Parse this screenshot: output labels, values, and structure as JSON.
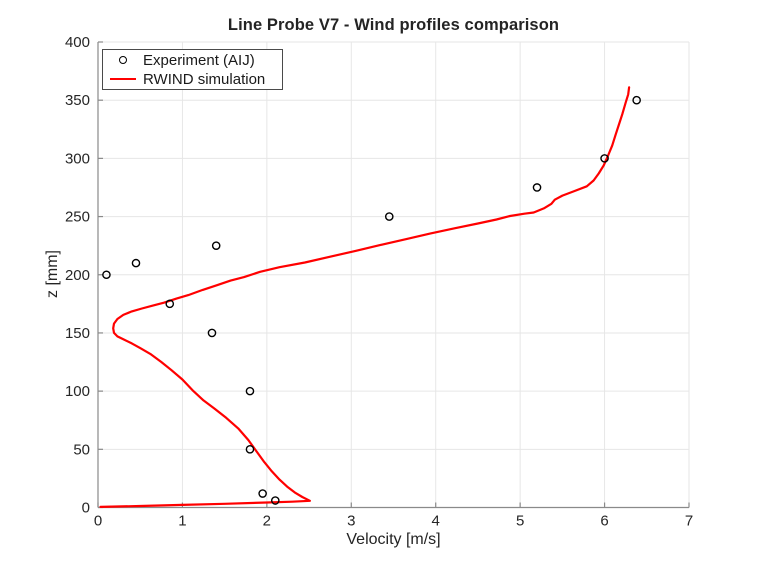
{
  "title": "Line Probe V7 - Wind profiles comparison",
  "legend": {
    "position": "upper-left",
    "items": [
      {
        "label": "Experiment (AIJ)",
        "marker": "open-circle",
        "color": "#000000"
      },
      {
        "label": "RWIND simulation",
        "marker": "line",
        "color": "#ff0000"
      }
    ]
  },
  "colors": {
    "line": "#ff0000",
    "marker_edge": "#000000",
    "grid": "#e6e6e6",
    "axis": "#8a8a8a",
    "tick_text": "#262626",
    "background": "#ffffff"
  },
  "chart_data": {
    "type": "line",
    "title": "Line Probe V7 - Wind profiles comparison",
    "xlabel": "Velocity [m/s]",
    "ylabel": "z [mm]",
    "xlim": [
      0,
      7
    ],
    "ylim": [
      0,
      400
    ],
    "xticks": [
      0,
      1,
      2,
      3,
      4,
      5,
      6,
      7
    ],
    "yticks": [
      0,
      50,
      100,
      150,
      200,
      250,
      300,
      350,
      400
    ],
    "grid": true,
    "legend_position": "upper-left",
    "series": [
      {
        "name": "Experiment (AIJ)",
        "type": "scatter",
        "marker": "open-circle",
        "color": "#000000",
        "points": [
          [
            2.1,
            6
          ],
          [
            1.95,
            12
          ],
          [
            1.8,
            50
          ],
          [
            1.8,
            100
          ],
          [
            1.35,
            150
          ],
          [
            0.85,
            175
          ],
          [
            0.1,
            200
          ],
          [
            0.45,
            210
          ],
          [
            1.4,
            225
          ],
          [
            3.45,
            250
          ],
          [
            5.2,
            275
          ],
          [
            6.0,
            300
          ],
          [
            6.38,
            350
          ]
        ]
      },
      {
        "name": "RWIND simulation",
        "type": "line",
        "color": "#ff0000",
        "points": [
          [
            0.03,
            0.5
          ],
          [
            0.5,
            1.3
          ],
          [
            1.0,
            2.2
          ],
          [
            1.5,
            3.2
          ],
          [
            2.0,
            4.3
          ],
          [
            2.3,
            5.0
          ],
          [
            2.51,
            5.8
          ],
          [
            2.42,
            9
          ],
          [
            2.33,
            13
          ],
          [
            2.24,
            18
          ],
          [
            2.15,
            24
          ],
          [
            2.06,
            31
          ],
          [
            1.97,
            39
          ],
          [
            1.88,
            48
          ],
          [
            1.78,
            58
          ],
          [
            1.66,
            68
          ],
          [
            1.52,
            77
          ],
          [
            1.38,
            85
          ],
          [
            1.25,
            92
          ],
          [
            1.13,
            100
          ],
          [
            1.0,
            110
          ],
          [
            0.87,
            118
          ],
          [
            0.75,
            125
          ],
          [
            0.62,
            132
          ],
          [
            0.5,
            137
          ],
          [
            0.4,
            141
          ],
          [
            0.3,
            144.5
          ],
          [
            0.23,
            147
          ],
          [
            0.19,
            150
          ],
          [
            0.18,
            154
          ],
          [
            0.19,
            158
          ],
          [
            0.23,
            162
          ],
          [
            0.3,
            165.5
          ],
          [
            0.4,
            168.5
          ],
          [
            0.52,
            171
          ],
          [
            0.65,
            173.5
          ],
          [
            0.78,
            176
          ],
          [
            0.93,
            179.5
          ],
          [
            1.07,
            182.5
          ],
          [
            1.24,
            187
          ],
          [
            1.41,
            191
          ],
          [
            1.57,
            195
          ],
          [
            1.73,
            198
          ],
          [
            1.92,
            202.5
          ],
          [
            2.15,
            206.5
          ],
          [
            2.45,
            210.5
          ],
          [
            2.75,
            215.5
          ],
          [
            3.05,
            220.5
          ],
          [
            3.34,
            225.5
          ],
          [
            3.64,
            230.5
          ],
          [
            3.94,
            235.5
          ],
          [
            4.23,
            240
          ],
          [
            4.5,
            244
          ],
          [
            4.72,
            247.5
          ],
          [
            4.88,
            250.5
          ],
          [
            5.05,
            252.5
          ],
          [
            5.16,
            253.5
          ],
          [
            5.28,
            257
          ],
          [
            5.37,
            261
          ],
          [
            5.41,
            264.5
          ],
          [
            5.5,
            268
          ],
          [
            5.63,
            271.5
          ],
          [
            5.79,
            276
          ],
          [
            5.87,
            281
          ],
          [
            5.93,
            287
          ],
          [
            5.99,
            294
          ],
          [
            6.04,
            302
          ],
          [
            6.09,
            311
          ],
          [
            6.13,
            320
          ],
          [
            6.17,
            329
          ],
          [
            6.21,
            338
          ],
          [
            6.25,
            348
          ],
          [
            6.28,
            355
          ],
          [
            6.29,
            361
          ]
        ]
      }
    ]
  }
}
